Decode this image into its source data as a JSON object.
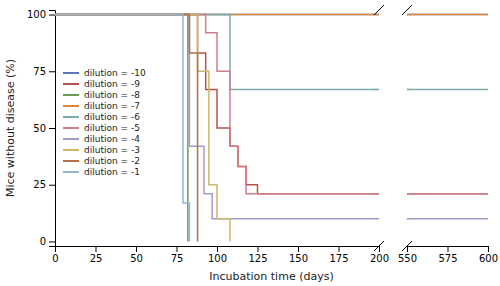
{
  "chart_data": [
    {
      "type": "step",
      "xlabel": "Incubation time (days)",
      "ylabel": "Mice without disease (%)",
      "xlim": [
        0,
        200
      ],
      "xticks": [
        0,
        25,
        50,
        75,
        100,
        125,
        150,
        175,
        200
      ],
      "ylim": [
        -2,
        102
      ],
      "yticks": [
        0,
        25,
        50,
        75,
        100
      ],
      "grid": false,
      "legend": "left",
      "series": [
        {
          "name": "dilution = -10",
          "color": "#5b77b8",
          "x": [
            0,
            200
          ],
          "values": [
            100,
            100
          ]
        },
        {
          "name": "dilution = -9",
          "color": "#b5534a",
          "x": [
            0,
            88,
            88,
            93,
            93,
            100,
            100,
            108,
            108,
            113,
            113,
            118,
            118,
            125,
            125,
            200
          ],
          "values": [
            100,
            100,
            83,
            83,
            67,
            67,
            50,
            50,
            42,
            42,
            33,
            33,
            25,
            25,
            21,
            21
          ],
          "censored": 21
        },
        {
          "name": "dilution = -8",
          "color": "#6a9b56",
          "x": [
            0,
            82,
            82
          ],
          "values": [
            100,
            100,
            0
          ]
        },
        {
          "name": "dilution = -7",
          "color": "#e0883a",
          "x": [
            0,
            200
          ],
          "values": [
            100,
            100
          ],
          "censored": 100
        },
        {
          "name": "dilution = -6",
          "color": "#7aadaa",
          "x": [
            0,
            108,
            108,
            200
          ],
          "values": [
            100,
            100,
            67,
            67
          ],
          "censored": 67
        },
        {
          "name": "dilution = -5",
          "color": "#d47d8a",
          "x": [
            0,
            93,
            93,
            100,
            100,
            108,
            108,
            113,
            113,
            118,
            118,
            200
          ],
          "values": [
            100,
            100,
            92,
            92,
            75,
            75,
            42,
            42,
            33,
            33,
            21,
            21
          ],
          "censored": 21
        },
        {
          "name": "dilution = -4",
          "color": "#a89ac8",
          "x": [
            0,
            83,
            83,
            92,
            92,
            97,
            97,
            200
          ],
          "values": [
            100,
            100,
            42,
            42,
            21,
            21,
            10,
            10
          ],
          "censored": 10
        },
        {
          "name": "dilution = -3",
          "color": "#c8b86a",
          "x": [
            0,
            88,
            88,
            95,
            95,
            100,
            100,
            108,
            108
          ],
          "values": [
            100,
            100,
            75,
            75,
            25,
            25,
            10,
            10,
            0
          ]
        },
        {
          "name": "dilution = -2",
          "color": "#b07048",
          "x": [
            0,
            83,
            83,
            88,
            88
          ],
          "values": [
            100,
            100,
            83,
            83,
            0
          ]
        },
        {
          "name": "dilution = -1",
          "color": "#92b8d0",
          "x": [
            0,
            79,
            79,
            83,
            83
          ],
          "values": [
            100,
            100,
            17,
            17,
            0
          ]
        }
      ]
    },
    {
      "type": "step",
      "xlim": [
        550,
        600
      ],
      "xticks": [
        550,
        575,
        600
      ],
      "ylim": [
        -2,
        102
      ],
      "grid": false,
      "tick_labels": "x",
      "series": [
        {
          "color": "#5b77b8",
          "x": [
            550,
            600
          ],
          "values": [
            100,
            100
          ]
        },
        {
          "color": "#b5534a",
          "x": [
            550,
            600
          ],
          "values": [
            21,
            21
          ],
          "censored": 21
        },
        {
          "color": "#e0883a",
          "x": [
            550,
            600
          ],
          "values": [
            100,
            100
          ],
          "censored": 100
        },
        {
          "color": "#7aadaa",
          "x": [
            550,
            600
          ],
          "values": [
            67,
            67
          ],
          "censored": 67
        },
        {
          "color": "#d47d8a",
          "x": [
            550,
            600
          ],
          "values": [
            21,
            21
          ],
          "censored": 21
        },
        {
          "color": "#a89ac8",
          "x": [
            550,
            600
          ],
          "values": [
            10,
            10
          ],
          "censored": 10
        }
      ]
    }
  ]
}
